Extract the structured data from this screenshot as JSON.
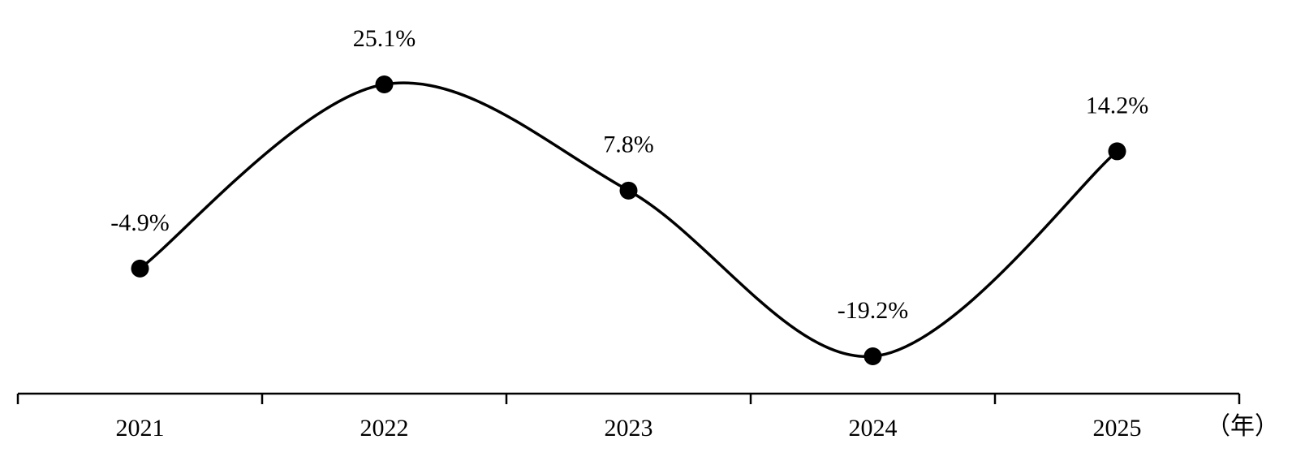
{
  "chart_data": {
    "type": "line",
    "categories": [
      "2021",
      "2022",
      "2023",
      "2024",
      "2025"
    ],
    "values": [
      -4.9,
      25.1,
      7.8,
      -19.2,
      14.2
    ],
    "value_labels": [
      "-4.9%",
      "25.1%",
      "7.8%",
      "-19.2%",
      "14.2%"
    ],
    "x_label": "（年）",
    "color": "#000000"
  }
}
